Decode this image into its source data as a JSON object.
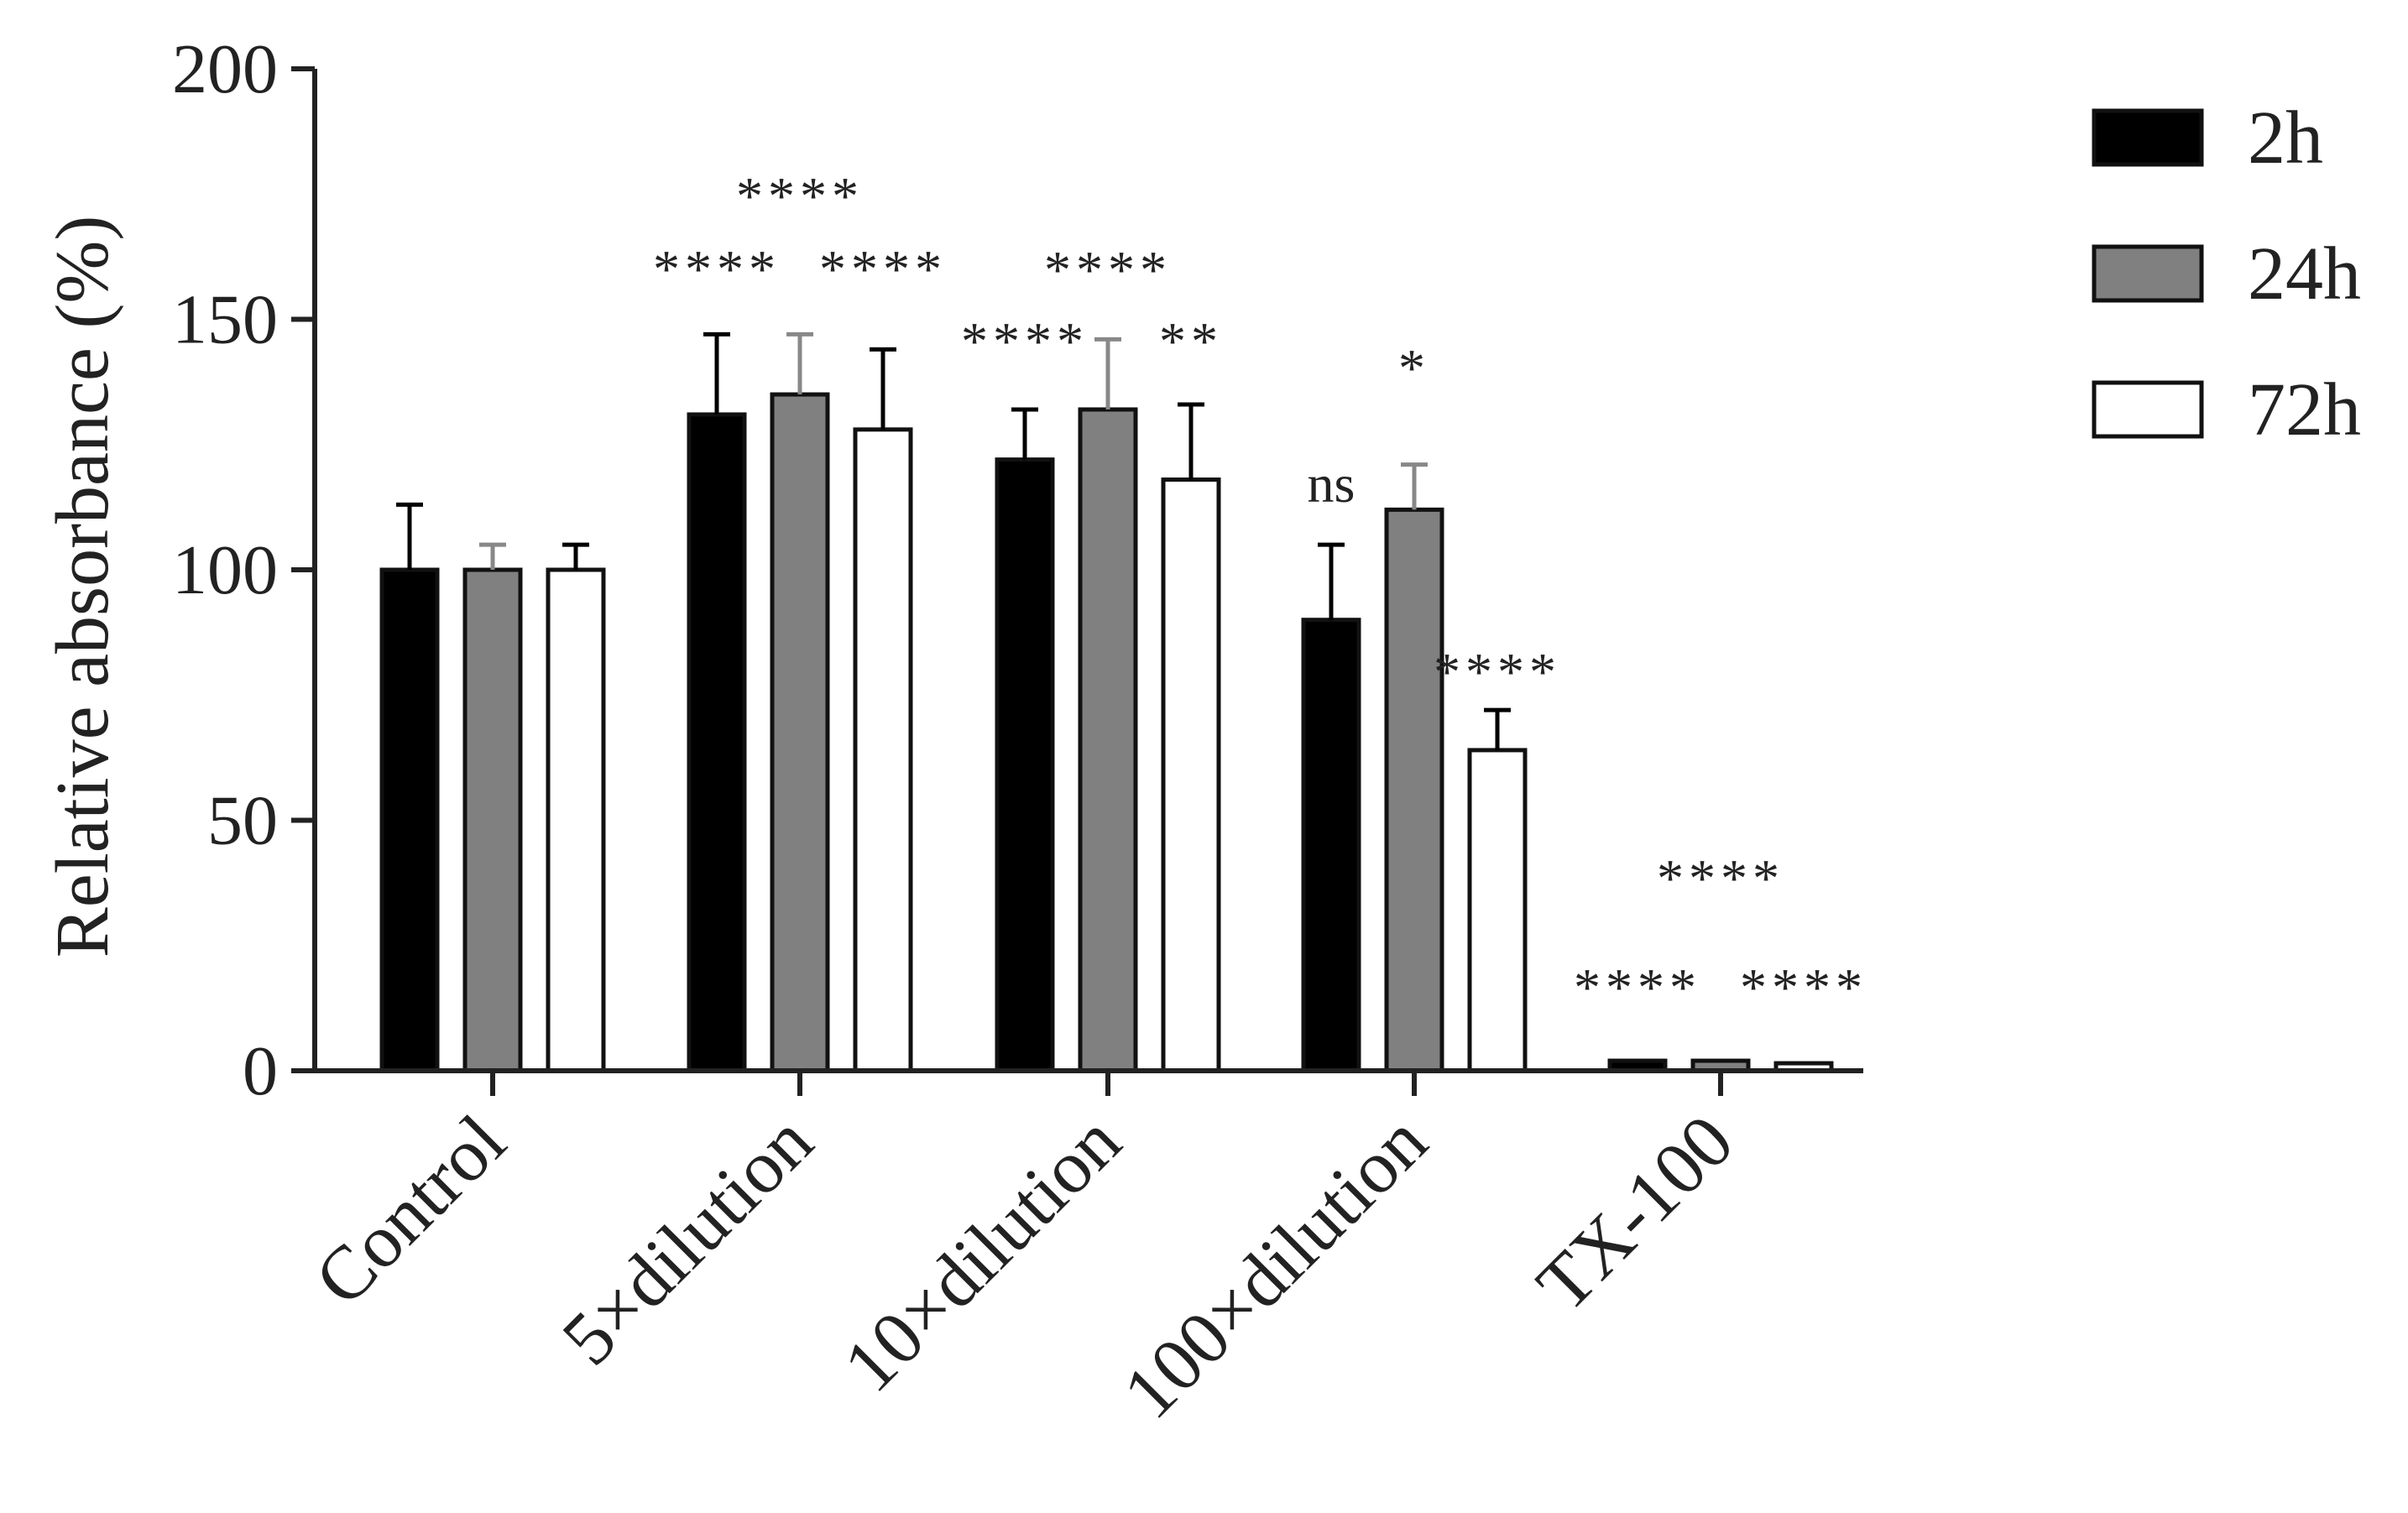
{
  "chart_data": {
    "type": "bar",
    "title": "",
    "xlabel": "",
    "ylabel": "Relative absorbance (%)",
    "ylim": [
      0,
      200
    ],
    "yticks": [
      0,
      50,
      100,
      150,
      200
    ],
    "categories": [
      "Control",
      "5×dilution",
      "10×dilution",
      "100×dilution",
      "TX-100"
    ],
    "series": [
      {
        "name": "2h",
        "color": "#000000",
        "values": [
          100,
          131,
          122,
          90,
          2
        ],
        "errors": [
          13,
          16,
          10,
          15,
          0.5
        ],
        "significance": [
          "",
          "****",
          "****",
          "ns",
          "****"
        ]
      },
      {
        "name": "24h",
        "color": "#808080",
        "values": [
          100,
          135,
          132,
          112,
          2
        ],
        "errors": [
          5,
          12,
          14,
          9,
          0.8
        ],
        "significance": [
          "",
          "****",
          "****",
          "*",
          "****"
        ]
      },
      {
        "name": "72h",
        "color": "#ffffff",
        "values": [
          100,
          128,
          118,
          64,
          1.5
        ],
        "errors": [
          5,
          16,
          15,
          8,
          0.5
        ],
        "significance": [
          "",
          "****",
          "**",
          "****",
          "****"
        ]
      }
    ],
    "legend_position": "top-right",
    "grid": false
  }
}
